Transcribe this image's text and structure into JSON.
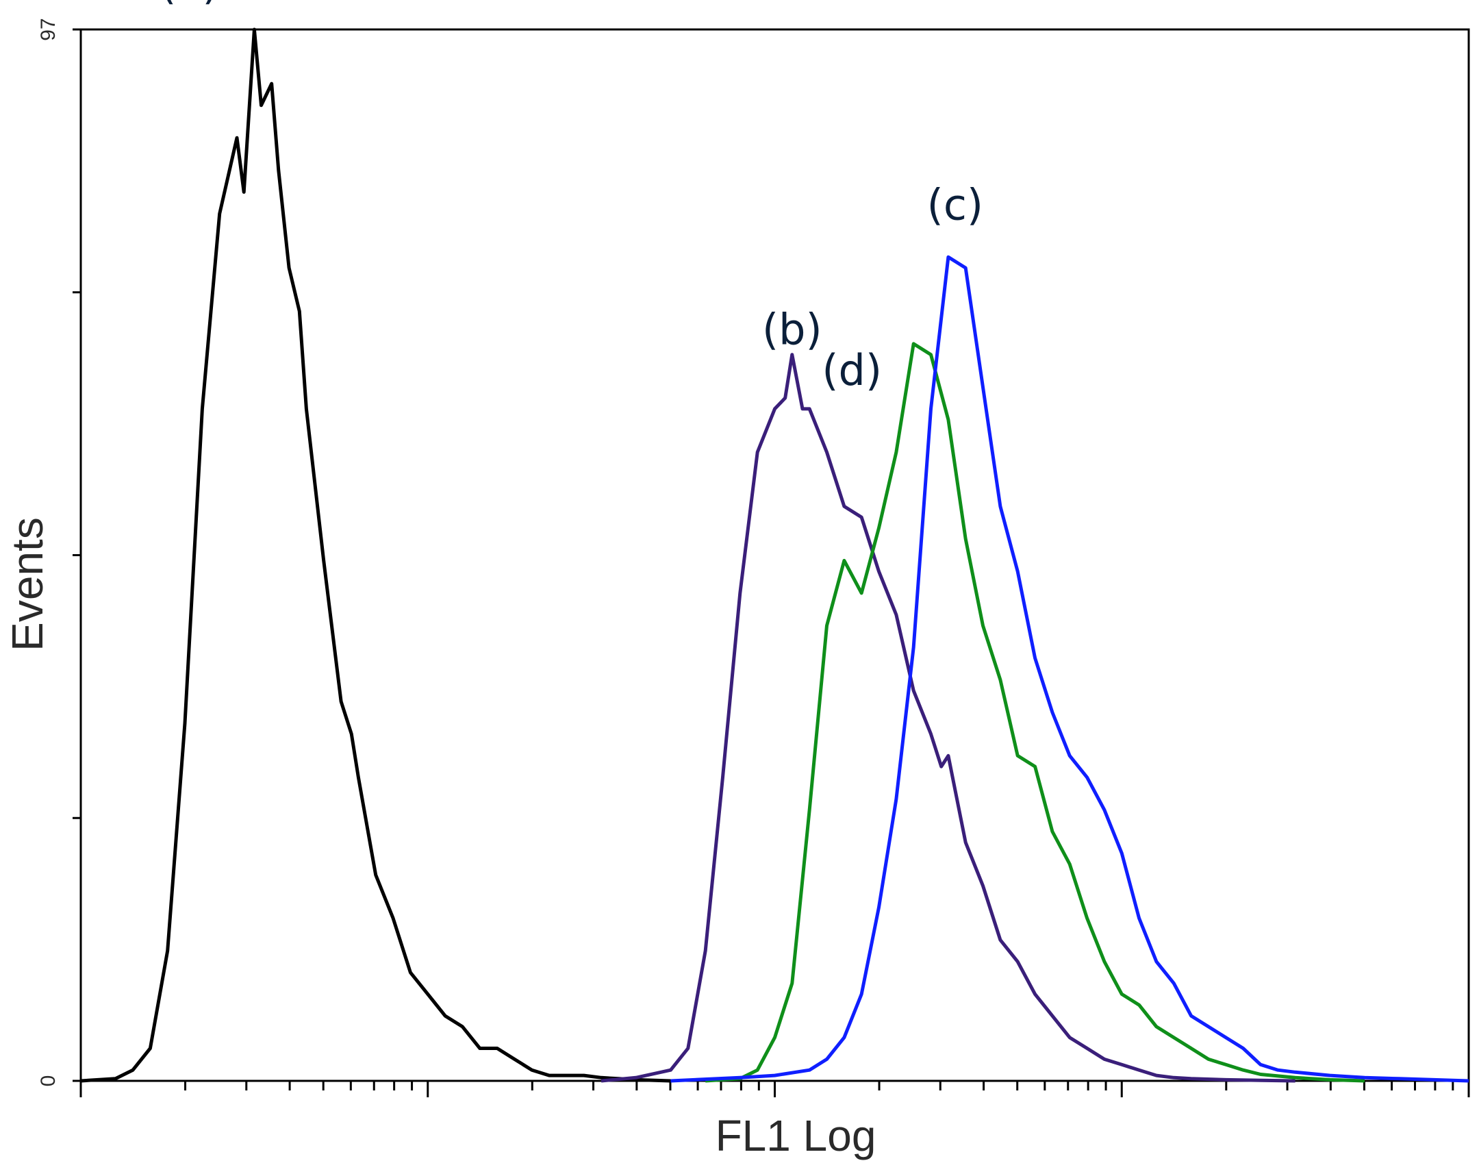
{
  "chart_data": {
    "type": "line",
    "title": "",
    "xlabel": "FL1 Log",
    "ylabel": "Events",
    "x_scale": "log",
    "x_decades": 4,
    "xlim": [
      0,
      4
    ],
    "ylim": [
      0,
      97
    ],
    "yticks": [
      0,
      97
    ],
    "grid": false,
    "legend": "none",
    "annotations": [
      {
        "text": "(a)",
        "series": "a"
      },
      {
        "text": "(b)",
        "series": "b"
      },
      {
        "text": "(c)",
        "series": "c"
      },
      {
        "text": "(d)",
        "series": "d"
      }
    ],
    "series": [
      {
        "name": "(a)",
        "color": "#000000",
        "x": [
          0.0,
          0.1,
          0.15,
          0.2,
          0.25,
          0.3,
          0.35,
          0.4,
          0.45,
          0.47,
          0.5,
          0.52,
          0.55,
          0.57,
          0.6,
          0.63,
          0.65,
          0.7,
          0.75,
          0.78,
          0.8,
          0.85,
          0.9,
          0.95,
          1.0,
          1.05,
          1.1,
          1.15,
          1.2,
          1.25,
          1.3,
          1.35,
          1.4,
          1.45,
          1.5,
          1.55,
          1.6,
          1.7
        ],
        "y": [
          0,
          0.2,
          1,
          3,
          12,
          33,
          62,
          80,
          87,
          82,
          97,
          90,
          92,
          84,
          75,
          71,
          62,
          48,
          35,
          32,
          28,
          19,
          15,
          10,
          8,
          6,
          5,
          3,
          3,
          2,
          1,
          0.5,
          0.5,
          0.5,
          0.3,
          0.2,
          0.1,
          0
        ]
      },
      {
        "name": "(b)",
        "color": "#3a1f7a",
        "x": [
          1.5,
          1.6,
          1.7,
          1.75,
          1.8,
          1.85,
          1.9,
          1.95,
          2.0,
          2.03,
          2.05,
          2.08,
          2.1,
          2.15,
          2.2,
          2.25,
          2.3,
          2.35,
          2.4,
          2.45,
          2.48,
          2.5,
          2.55,
          2.6,
          2.65,
          2.7,
          2.75,
          2.8,
          2.85,
          2.9,
          2.95,
          3.0,
          3.05,
          3.1,
          3.15,
          3.2,
          3.3,
          3.4,
          3.5
        ],
        "y": [
          0,
          0.3,
          1,
          3,
          12,
          28,
          45,
          58,
          62,
          63,
          67,
          62,
          62,
          58,
          53,
          52,
          47,
          43,
          36,
          32,
          29,
          30,
          22,
          18,
          13,
          11,
          8,
          6,
          4,
          3,
          2,
          1.5,
          1,
          0.5,
          0.3,
          0.2,
          0.1,
          0.05,
          0
        ]
      },
      {
        "name": "(d)",
        "color": "#0f8f1a",
        "x": [
          1.8,
          1.9,
          1.95,
          2.0,
          2.05,
          2.1,
          2.15,
          2.2,
          2.25,
          2.3,
          2.35,
          2.4,
          2.45,
          2.5,
          2.55,
          2.6,
          2.65,
          2.7,
          2.75,
          2.8,
          2.85,
          2.9,
          2.95,
          3.0,
          3.05,
          3.1,
          3.15,
          3.2,
          3.25,
          3.3,
          3.35,
          3.4,
          3.5,
          3.6,
          3.7
        ],
        "y": [
          0,
          0.2,
          1,
          4,
          9,
          25,
          42,
          48,
          45,
          51,
          58,
          68,
          67,
          61,
          50,
          42,
          37,
          30,
          29,
          23,
          20,
          15,
          11,
          8,
          7,
          5,
          4,
          3,
          2,
          1.5,
          1,
          0.6,
          0.3,
          0.1,
          0
        ]
      },
      {
        "name": "(c)",
        "color": "#0f1fff",
        "x": [
          1.7,
          1.9,
          2.0,
          2.1,
          2.15,
          2.2,
          2.25,
          2.3,
          2.35,
          2.4,
          2.45,
          2.5,
          2.55,
          2.6,
          2.65,
          2.7,
          2.75,
          2.8,
          2.85,
          2.9,
          2.95,
          3.0,
          3.05,
          3.1,
          3.15,
          3.2,
          3.25,
          3.3,
          3.35,
          3.4,
          3.45,
          3.5,
          3.6,
          3.7,
          3.8,
          3.9,
          4.0
        ],
        "y": [
          0,
          0.3,
          0.5,
          1,
          2,
          4,
          8,
          16,
          26,
          40,
          62,
          76,
          75,
          64,
          53,
          47,
          39,
          34,
          30,
          28,
          25,
          21,
          15,
          11,
          9,
          6,
          5,
          4,
          3,
          1.5,
          1,
          0.8,
          0.5,
          0.3,
          0.2,
          0.1,
          0
        ]
      }
    ]
  }
}
